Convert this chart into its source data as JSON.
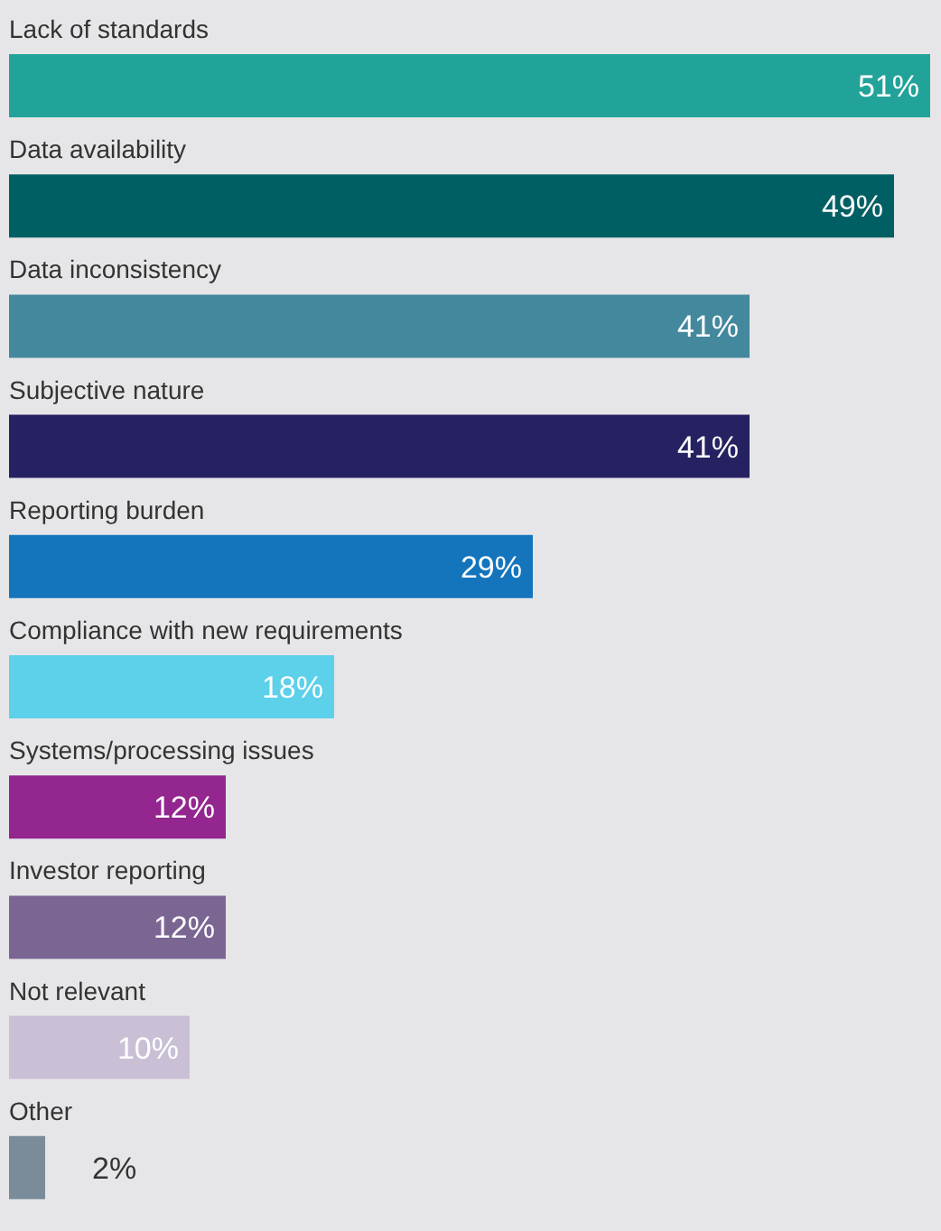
{
  "chart_data": {
    "type": "bar",
    "orientation": "horizontal",
    "relative": false,
    "categories": [
      "Lack of standards",
      "Data availability",
      "Data inconsistency",
      "Subjective nature",
      "Reporting burden",
      "Compliance with new requirements",
      "Systems/processing issues",
      "Investor reporting",
      "Not relevant",
      "Other"
    ],
    "values": [
      51,
      49,
      41,
      41,
      29,
      18,
      12,
      12,
      10,
      2
    ],
    "value_labels": [
      "51%",
      "49%",
      "41%",
      "41%",
      "29%",
      "18%",
      "12%",
      "12%",
      "10%",
      "2%"
    ],
    "colors": [
      "#22a39a",
      "#005f63",
      "#44889e",
      "#262262",
      "#1475bd",
      "#5dd0ea",
      "#93268f",
      "#7b6693",
      "#c9c0d6",
      "#7a8c99"
    ]
  }
}
